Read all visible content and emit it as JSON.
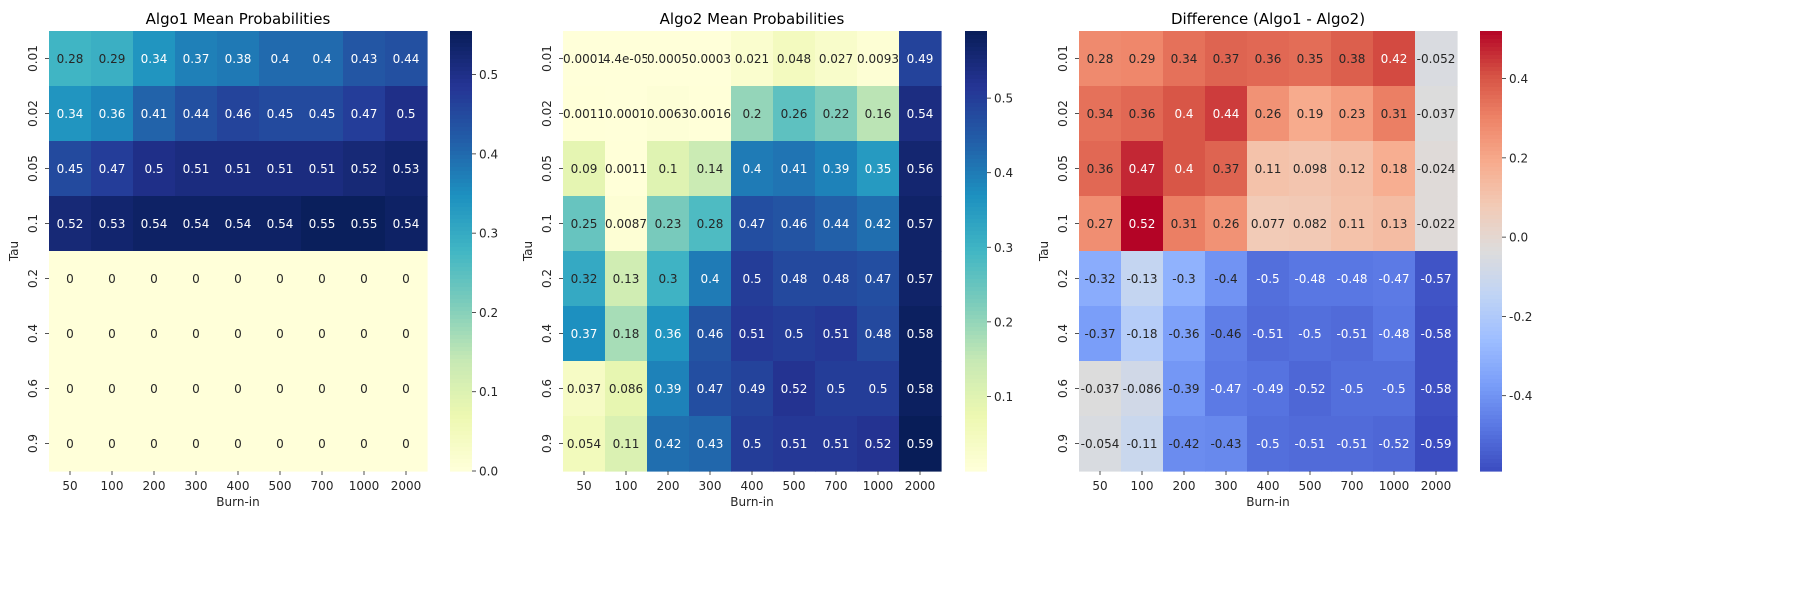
{
  "chart_data": [
    {
      "type": "heatmap",
      "title": "Algo1 Mean Probabilities",
      "xlabel": "Burn-in",
      "ylabel": "Tau",
      "x": [
        "50",
        "100",
        "200",
        "300",
        "400",
        "500",
        "700",
        "1000",
        "2000"
      ],
      "y": [
        "0.01",
        "0.02",
        "0.05",
        "0.1",
        "0.2",
        "0.4",
        "0.6",
        "0.9"
      ],
      "values": [
        [
          0.28,
          0.29,
          0.34,
          0.37,
          0.38,
          0.4,
          0.4,
          0.43,
          0.44
        ],
        [
          0.34,
          0.36,
          0.41,
          0.44,
          0.46,
          0.45,
          0.45,
          0.47,
          0.5
        ],
        [
          0.45,
          0.47,
          0.5,
          0.51,
          0.51,
          0.51,
          0.51,
          0.52,
          0.53
        ],
        [
          0.52,
          0.53,
          0.54,
          0.54,
          0.54,
          0.54,
          0.55,
          0.55,
          0.54
        ],
        [
          0,
          0,
          0,
          0,
          0,
          0,
          0,
          0,
          0
        ],
        [
          0,
          0,
          0,
          0,
          0,
          0,
          0,
          0,
          0
        ],
        [
          0,
          0,
          0,
          0,
          0,
          0,
          0,
          0,
          0
        ],
        [
          0,
          0,
          0,
          0,
          0,
          0,
          0,
          0,
          0
        ]
      ],
      "labels": [
        [
          "0.28",
          "0.29",
          "0.34",
          "0.37",
          "0.38",
          "0.4",
          "0.4",
          "0.43",
          "0.44"
        ],
        [
          "0.34",
          "0.36",
          "0.41",
          "0.44",
          "0.46",
          "0.45",
          "0.45",
          "0.47",
          "0.5"
        ],
        [
          "0.45",
          "0.47",
          "0.5",
          "0.51",
          "0.51",
          "0.51",
          "0.51",
          "0.52",
          "0.53"
        ],
        [
          "0.52",
          "0.53",
          "0.54",
          "0.54",
          "0.54",
          "0.54",
          "0.55",
          "0.55",
          "0.54"
        ],
        [
          "0",
          "0",
          "0",
          "0",
          "0",
          "0",
          "0",
          "0",
          "0"
        ],
        [
          "0",
          "0",
          "0",
          "0",
          "0",
          "0",
          "0",
          "0",
          "0"
        ],
        [
          "0",
          "0",
          "0",
          "0",
          "0",
          "0",
          "0",
          "0",
          "0"
        ],
        [
          "0",
          "0",
          "0",
          "0",
          "0",
          "0",
          "0",
          "0",
          "0"
        ]
      ],
      "colormap": "YlGnBu",
      "colorbar": {
        "range": [
          0,
          0.555
        ],
        "ticks": [
          "0.0",
          "0.1",
          "0.2",
          "0.3",
          "0.4",
          "0.5"
        ]
      }
    },
    {
      "type": "heatmap",
      "title": "Algo2 Mean Probabilities",
      "xlabel": "Burn-in",
      "ylabel": "Tau",
      "x": [
        "50",
        "100",
        "200",
        "300",
        "400",
        "500",
        "700",
        "1000",
        "2000"
      ],
      "y": [
        "0.01",
        "0.02",
        "0.05",
        "0.1",
        "0.2",
        "0.4",
        "0.6",
        "0.9"
      ],
      "values": [
        [
          0.0001,
          4.4e-05,
          0.0005,
          0.0003,
          0.021,
          0.048,
          0.027,
          0.0093,
          0.49
        ],
        [
          0.0011,
          0.0001,
          0.0063,
          0.0016,
          0.2,
          0.26,
          0.22,
          0.16,
          0.54
        ],
        [
          0.09,
          0.0011,
          0.1,
          0.14,
          0.4,
          0.41,
          0.39,
          0.35,
          0.56
        ],
        [
          0.25,
          0.0087,
          0.23,
          0.28,
          0.47,
          0.46,
          0.44,
          0.42,
          0.57
        ],
        [
          0.32,
          0.13,
          0.3,
          0.4,
          0.5,
          0.48,
          0.48,
          0.47,
          0.57
        ],
        [
          0.37,
          0.18,
          0.36,
          0.46,
          0.51,
          0.5,
          0.51,
          0.48,
          0.58
        ],
        [
          0.037,
          0.086,
          0.39,
          0.47,
          0.49,
          0.52,
          0.5,
          0.5,
          0.58
        ],
        [
          0.054,
          0.11,
          0.42,
          0.43,
          0.5,
          0.51,
          0.51,
          0.52,
          0.59
        ]
      ],
      "labels": [
        [
          "0.0001",
          "4.4e-05",
          "0.0005",
          "0.0003",
          "0.021",
          "0.048",
          "0.027",
          "0.0093",
          "0.49"
        ],
        [
          "0.0011",
          "0.0001",
          "0.0063",
          "0.0016",
          "0.2",
          "0.26",
          "0.22",
          "0.16",
          "0.54"
        ],
        [
          "0.09",
          "0.0011",
          "0.1",
          "0.14",
          "0.4",
          "0.41",
          "0.39",
          "0.35",
          "0.56"
        ],
        [
          "0.25",
          "0.0087",
          "0.23",
          "0.28",
          "0.47",
          "0.46",
          "0.44",
          "0.42",
          "0.57"
        ],
        [
          "0.32",
          "0.13",
          "0.3",
          "0.4",
          "0.5",
          "0.48",
          "0.48",
          "0.47",
          "0.57"
        ],
        [
          "0.37",
          "0.18",
          "0.36",
          "0.46",
          "0.51",
          "0.5",
          "0.51",
          "0.48",
          "0.58"
        ],
        [
          "0.037",
          "0.086",
          "0.39",
          "0.47",
          "0.49",
          "0.52",
          "0.5",
          "0.5",
          "0.58"
        ],
        [
          "0.054",
          "0.11",
          "0.42",
          "0.43",
          "0.5",
          "0.51",
          "0.51",
          "0.52",
          "0.59"
        ]
      ],
      "colormap": "YlGnBu",
      "colorbar": {
        "range": [
          0,
          0.59
        ],
        "ticks": [
          "0.1",
          "0.2",
          "0.3",
          "0.4",
          "0.5"
        ]
      }
    },
    {
      "type": "heatmap",
      "title": "Difference (Algo1 - Algo2)",
      "xlabel": "Burn-in",
      "ylabel": "Tau",
      "x": [
        "50",
        "100",
        "200",
        "300",
        "400",
        "500",
        "700",
        "1000",
        "2000"
      ],
      "y": [
        "0.01",
        "0.02",
        "0.05",
        "0.1",
        "0.2",
        "0.4",
        "0.6",
        "0.9"
      ],
      "values": [
        [
          0.28,
          0.29,
          0.34,
          0.37,
          0.36,
          0.35,
          0.38,
          0.42,
          -0.052
        ],
        [
          0.34,
          0.36,
          0.4,
          0.44,
          0.26,
          0.19,
          0.23,
          0.31,
          -0.037
        ],
        [
          0.36,
          0.47,
          0.4,
          0.37,
          0.11,
          0.098,
          0.12,
          0.18,
          -0.024
        ],
        [
          0.27,
          0.52,
          0.31,
          0.26,
          0.077,
          0.082,
          0.11,
          0.13,
          -0.022
        ],
        [
          -0.32,
          -0.13,
          -0.3,
          -0.4,
          -0.5,
          -0.48,
          -0.48,
          -0.47,
          -0.57
        ],
        [
          -0.37,
          -0.18,
          -0.36,
          -0.46,
          -0.51,
          -0.5,
          -0.51,
          -0.48,
          -0.58
        ],
        [
          -0.037,
          -0.086,
          -0.39,
          -0.47,
          -0.49,
          -0.52,
          -0.5,
          -0.5,
          -0.58
        ],
        [
          -0.054,
          -0.11,
          -0.42,
          -0.43,
          -0.5,
          -0.51,
          -0.51,
          -0.52,
          -0.59
        ]
      ],
      "labels": [
        [
          "0.28",
          "0.29",
          "0.34",
          "0.37",
          "0.36",
          "0.35",
          "0.38",
          "0.42",
          "-0.052"
        ],
        [
          "0.34",
          "0.36",
          "0.4",
          "0.44",
          "0.26",
          "0.19",
          "0.23",
          "0.31",
          "-0.037"
        ],
        [
          "0.36",
          "0.47",
          "0.4",
          "0.37",
          "0.11",
          "0.098",
          "0.12",
          "0.18",
          "-0.024"
        ],
        [
          "0.27",
          "0.52",
          "0.31",
          "0.26",
          "0.077",
          "0.082",
          "0.11",
          "0.13",
          "-0.022"
        ],
        [
          "-0.32",
          "-0.13",
          "-0.3",
          "-0.4",
          "-0.5",
          "-0.48",
          "-0.48",
          "-0.47",
          "-0.57"
        ],
        [
          "-0.37",
          "-0.18",
          "-0.36",
          "-0.46",
          "-0.51",
          "-0.5",
          "-0.51",
          "-0.48",
          "-0.58"
        ],
        [
          "-0.037",
          "-0.086",
          "-0.39",
          "-0.47",
          "-0.49",
          "-0.52",
          "-0.5",
          "-0.5",
          "-0.58"
        ],
        [
          "-0.054",
          "-0.11",
          "-0.42",
          "-0.43",
          "-0.5",
          "-0.51",
          "-0.51",
          "-0.52",
          "-0.59"
        ]
      ],
      "colormap": "coolwarm",
      "colorbar": {
        "range": [
          -0.59,
          0.52
        ],
        "ticks": [
          "-0.4",
          "-0.2",
          "0.0",
          "0.2",
          "0.4"
        ]
      }
    }
  ]
}
